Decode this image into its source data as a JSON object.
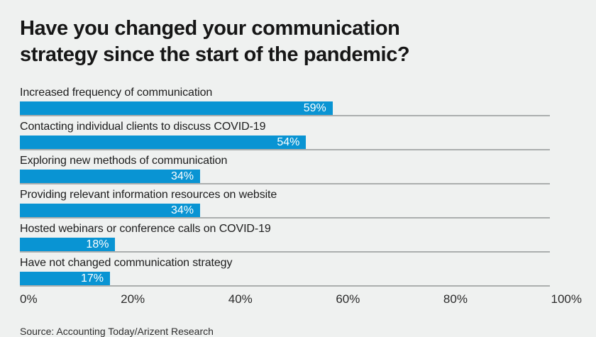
{
  "title": {
    "line1": "Have you changed your communication",
    "line2": "strategy since the start of the pandemic?"
  },
  "source": "Source: Accounting Today/Arizent Research",
  "colors": {
    "background": "#eff1f0",
    "bar": "#0994d3",
    "baseline": "#abaeae",
    "value_text": "#ffffff",
    "title_text": "#161616"
  },
  "chart_data": {
    "type": "bar",
    "orientation": "horizontal",
    "title": "Have you changed your communication strategy since the start of the pandemic?",
    "categories": [
      "Increased frequency of communication",
      "Contacting individual clients to discuss COVID-19",
      "Exploring new methods of communication",
      "Providing relevant information resources on website",
      "Hosted webinars or conference calls on COVID-19",
      "Have not changed communication strategy"
    ],
    "values": [
      59,
      54,
      34,
      34,
      18,
      17
    ],
    "value_labels": [
      "59%",
      "54%",
      "34%",
      "34%",
      "18%",
      "17%"
    ],
    "xlabel": "",
    "ylabel": "",
    "xlim": [
      0,
      100
    ],
    "x_ticks": [
      "0%",
      "20%",
      "40%",
      "60%",
      "80%",
      "100%"
    ],
    "grid": false,
    "legend": false,
    "source": "Source: Accounting Today/Arizent Research"
  }
}
